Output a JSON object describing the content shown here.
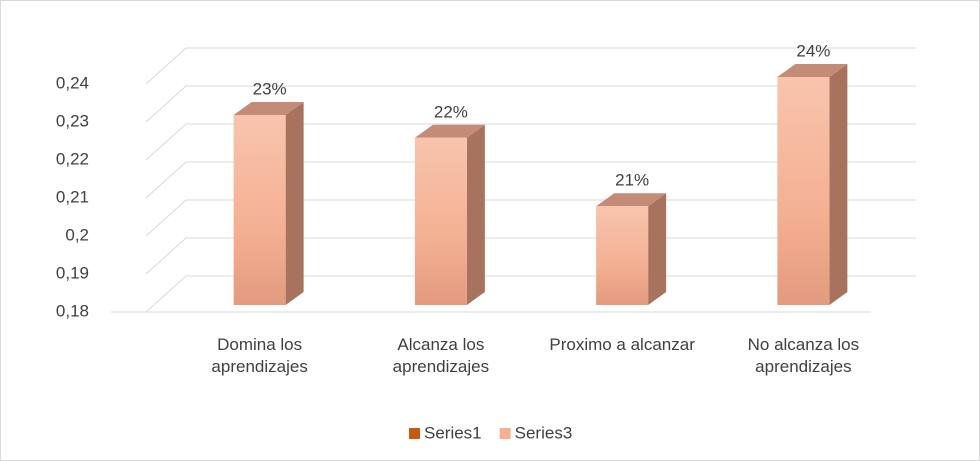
{
  "chart_data": {
    "type": "bar3d",
    "categories": [
      "Domina los aprendizajes",
      "Alcanza los aprendizajes",
      "Proximo a alcanzar",
      "No alcanza los aprendizajes"
    ],
    "series": [
      {
        "name": "Series1",
        "color": "#c55a11",
        "values": [
          null,
          null,
          null,
          null
        ]
      },
      {
        "name": "Series3",
        "color": "#f4b093",
        "values": [
          0.23,
          0.224,
          0.206,
          0.24
        ],
        "value_labels": [
          "23%",
          "22%",
          "21%",
          "24%"
        ]
      }
    ],
    "ylim": [
      0.18,
      0.24
    ],
    "yticks": [
      {
        "value": 0.18,
        "label": "0,18"
      },
      {
        "value": 0.19,
        "label": "0,19"
      },
      {
        "value": 0.2,
        "label": "0,2"
      },
      {
        "value": 0.21,
        "label": "0,21"
      },
      {
        "value": 0.22,
        "label": "0,22"
      },
      {
        "value": 0.23,
        "label": "0,23"
      },
      {
        "value": 0.24,
        "label": "0,24"
      }
    ],
    "grid": true,
    "legend": "bottom"
  }
}
